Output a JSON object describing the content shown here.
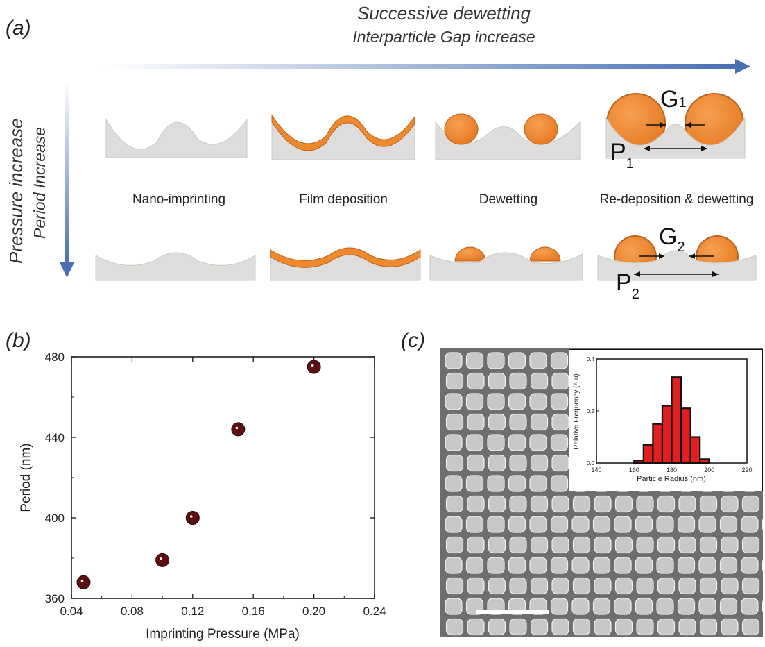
{
  "panel_a": {
    "label": "(a)",
    "horizontal_title": "Successive dewetting",
    "horizontal_subtitle": "Interparticle Gap increase",
    "vertical_title": "Pressure increase",
    "vertical_subtitle": "Period Increase",
    "stages": [
      "Nano-imprinting",
      "Film deposition",
      "Dewetting",
      "Re-deposition & dewetting"
    ],
    "gap_labels": [
      {
        "main": "G",
        "sub": "1"
      },
      {
        "main": "G",
        "sub": "2"
      }
    ],
    "period_labels": [
      {
        "main": "P",
        "sub": "1"
      },
      {
        "main": "P",
        "sub": "2"
      }
    ],
    "colors": {
      "substrate": "#dcdcda",
      "film": "#f0892e",
      "film_edge": "#b8621c",
      "arrow": "#4a6fb5"
    }
  },
  "panel_b": {
    "label": "(b)",
    "chart_data": {
      "type": "scatter",
      "xlabel": "Imprinting Pressure (MPa)",
      "ylabel": "Period (nm)",
      "xlim": [
        0.04,
        0.24
      ],
      "ylim": [
        360,
        480
      ],
      "xticks": [
        "0.04",
        "0.08",
        "0.12",
        "0.16",
        "0.20",
        "0.24"
      ],
      "yticks": [
        "360",
        "400",
        "440",
        "480"
      ],
      "x": [
        0.048,
        0.1,
        0.12,
        0.15,
        0.2
      ],
      "y": [
        368,
        379,
        400,
        444,
        475
      ],
      "marker_color": "#5a1010"
    }
  },
  "panel_c": {
    "label": "(c)",
    "sem_colors": {
      "background": "#6e6e6e",
      "particle": "#c8c8c8",
      "scale_bar": "#ffffff"
    },
    "scale_bar_value": "",
    "inset_chart": {
      "type": "bar",
      "xlabel": "Particle Radius (nm)",
      "ylabel": "Relative Frequency (a.u)",
      "xlim": [
        140,
        220
      ],
      "ylim": [
        0,
        0.4
      ],
      "xticks": [
        "140",
        "160",
        "180",
        "200",
        "220"
      ],
      "yticks": [
        "0.0",
        "0.2",
        "0.4"
      ],
      "bin_centers": [
        162.5,
        167.5,
        172.5,
        177.5,
        182.5,
        187.5,
        192.5,
        197.5
      ],
      "values": [
        0.01,
        0.07,
        0.15,
        0.22,
        0.33,
        0.21,
        0.1,
        0.015
      ],
      "bar_color": "#e02020",
      "edge_color": "#111111"
    }
  }
}
